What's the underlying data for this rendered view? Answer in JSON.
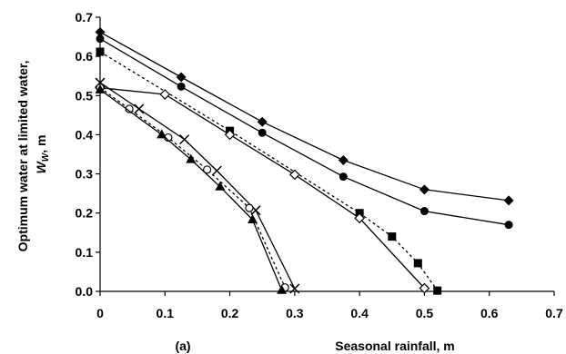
{
  "chart_data": {
    "type": "line",
    "panel_label": "(a)",
    "xlabel": "Seasonal rainfall, m",
    "ylabel_line1": "Optimum water at limited water,",
    "ylabel_line2": "W",
    "ylabel_sub": "W",
    "ylabel_suffix": ", m",
    "xlim": [
      0,
      0.7
    ],
    "ylim": [
      0,
      0.7
    ],
    "xticks": [
      "0",
      "0.1",
      "0.2",
      "0.3",
      "0.4",
      "0.5",
      "0.6",
      "0.7"
    ],
    "yticks": [
      "0.0",
      "0.1",
      "0.2",
      "0.3",
      "0.4",
      "0.5",
      "0.6",
      "0.7"
    ],
    "grid": false,
    "legend": "none",
    "series": [
      {
        "marker": "filled-diamond",
        "line_style": "solid",
        "color": "#000000",
        "x": [
          0.0,
          0.125,
          0.25,
          0.375,
          0.5,
          0.63
        ],
        "y": [
          0.662,
          0.547,
          0.433,
          0.335,
          0.26,
          0.232
        ]
      },
      {
        "marker": "filled-circle",
        "line_style": "solid",
        "color": "#000000",
        "x": [
          0.0,
          0.125,
          0.25,
          0.375,
          0.5,
          0.63
        ],
        "y": [
          0.645,
          0.523,
          0.405,
          0.293,
          0.205,
          0.17
        ]
      },
      {
        "marker": "filled-square",
        "line_style": "dashed",
        "color": "#000000",
        "x": [
          0.0,
          0.2,
          0.4,
          0.45,
          0.49,
          0.52
        ],
        "y": [
          0.612,
          0.41,
          0.2,
          0.14,
          0.072,
          0.002
        ]
      },
      {
        "marker": "open-diamond",
        "line_style": "solid",
        "color": "#000000",
        "x": [
          0.0,
          0.1,
          0.2,
          0.3,
          0.4,
          0.5
        ],
        "y": [
          0.52,
          0.503,
          0.4,
          0.298,
          0.187,
          0.008
        ]
      },
      {
        "marker": "cross",
        "line_style": "solid",
        "color": "#000000",
        "x": [
          0.0,
          0.06,
          0.13,
          0.18,
          0.24,
          0.3
        ],
        "y": [
          0.533,
          0.466,
          0.388,
          0.308,
          0.207,
          0.007
        ]
      },
      {
        "marker": "open-circle",
        "line_style": "dashed",
        "color": "#000000",
        "x": [
          0.0,
          0.045,
          0.105,
          0.165,
          0.23,
          0.285
        ],
        "y": [
          0.52,
          0.466,
          0.393,
          0.311,
          0.213,
          0.01
        ]
      },
      {
        "marker": "filled-triangle",
        "line_style": "solid",
        "color": "#000000",
        "x": [
          0.0,
          0.095,
          0.14,
          0.185,
          0.235,
          0.28
        ],
        "y": [
          0.515,
          0.4,
          0.337,
          0.267,
          0.183,
          0.003
        ]
      }
    ]
  }
}
